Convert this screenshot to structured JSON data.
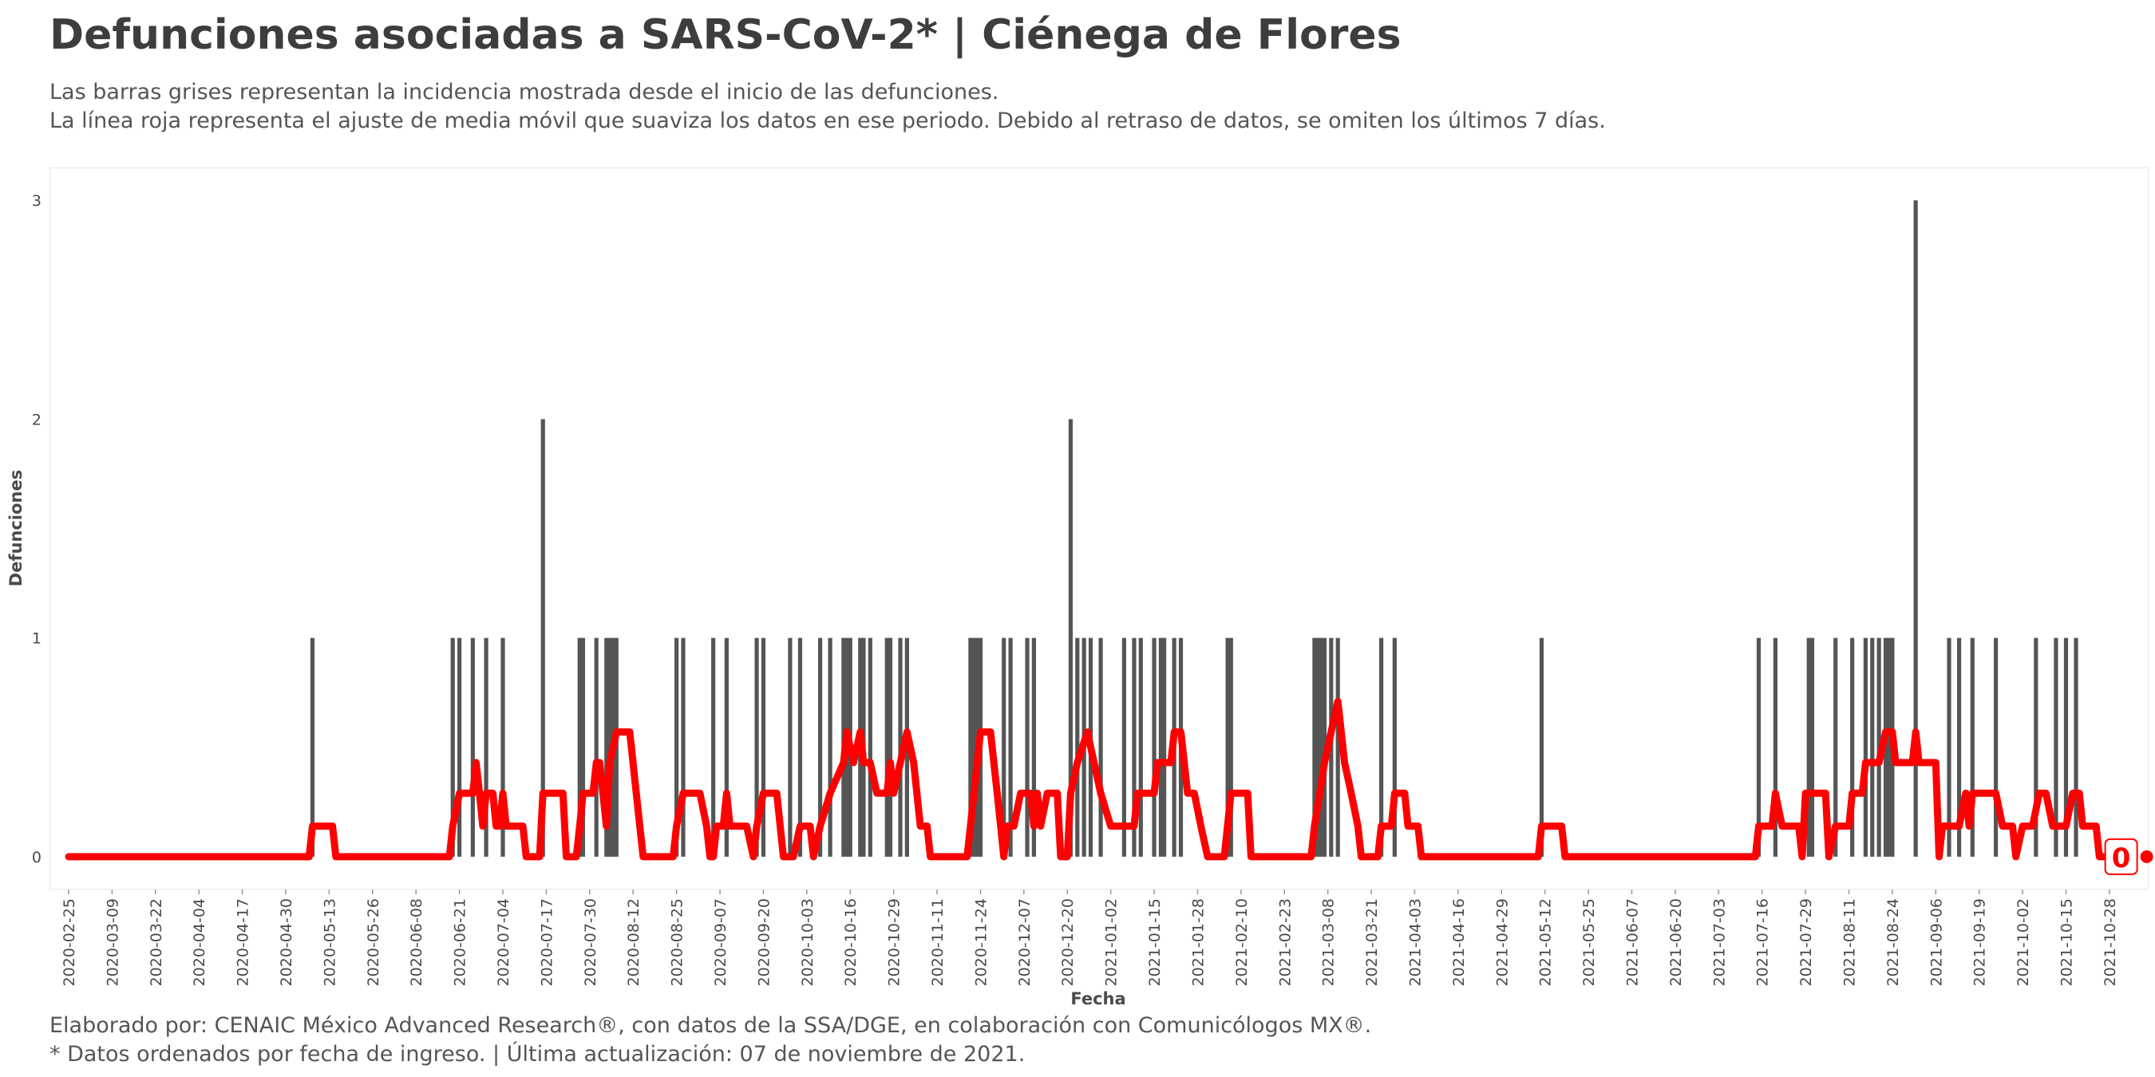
{
  "title": "Defunciones asociadas a SARS-CoV-2* | Ciénega de Flores",
  "subtitle_line1": "Las barras grises representan la incidencia mostrada desde el inicio de las defunciones.",
  "subtitle_line2": "La línea roja representa el ajuste de media móvil que suaviza los datos en ese periodo. Debido al retraso de datos, se omiten los últimos 7 días.",
  "footer_line1": "Elaborado por: CENAIC México Advanced Research®, con datos de la SSA/DGE, en colaboración con Comunicólogos MX®.",
  "footer_line2": "* Datos ordenados por fecha de ingreso. | Última actualización: 07 de noviembre de 2021.",
  "colors": {
    "bars": "#555555",
    "line": "#ff0000",
    "text": "#3d3d3d"
  },
  "chart_data": {
    "type": "bar",
    "xlabel": "Fecha",
    "ylabel": "Defunciones",
    "x_start": "2020-02-25",
    "x_end": "2021-11-03",
    "ylim": [
      -0.15,
      3.15
    ],
    "y_ticks": [
      0,
      1,
      2,
      3
    ],
    "x_ticks": [
      "2020-02-25",
      "2020-03-09",
      "2020-03-22",
      "2020-04-04",
      "2020-04-17",
      "2020-04-30",
      "2020-05-13",
      "2020-05-26",
      "2020-06-08",
      "2020-06-21",
      "2020-07-04",
      "2020-07-17",
      "2020-07-30",
      "2020-08-12",
      "2020-08-25",
      "2020-09-07",
      "2020-09-20",
      "2020-10-03",
      "2020-10-16",
      "2020-10-29",
      "2020-11-11",
      "2020-11-24",
      "2020-12-07",
      "2020-12-20",
      "2021-01-02",
      "2021-01-15",
      "2021-01-28",
      "2021-02-10",
      "2021-02-23",
      "2021-03-08",
      "2021-03-21",
      "2021-04-03",
      "2021-04-16",
      "2021-04-29",
      "2021-05-12",
      "2021-05-25",
      "2021-06-07",
      "2021-06-20",
      "2021-07-03",
      "2021-07-16",
      "2021-07-29",
      "2021-08-11",
      "2021-08-24",
      "2021-09-06",
      "2021-09-19",
      "2021-10-02",
      "2021-10-15",
      "2021-10-28"
    ],
    "grid": false,
    "series": [
      {
        "name": "",
        "kind": "bar",
        "points": [
          [
            "2020-05-08",
            1
          ],
          [
            "2020-06-19",
            1
          ],
          [
            "2020-06-21",
            1
          ],
          [
            "2020-06-25",
            1
          ],
          [
            "2020-06-29",
            1
          ],
          [
            "2020-07-04",
            1
          ],
          [
            "2020-07-16",
            2
          ],
          [
            "2020-07-27",
            1
          ],
          [
            "2020-07-28",
            1
          ],
          [
            "2020-08-01",
            1
          ],
          [
            "2020-08-04",
            1
          ],
          [
            "2020-08-05",
            1
          ],
          [
            "2020-08-06",
            1
          ],
          [
            "2020-08-07",
            1
          ],
          [
            "2020-08-25",
            1
          ],
          [
            "2020-08-27",
            1
          ],
          [
            "2020-09-05",
            1
          ],
          [
            "2020-09-09",
            1
          ],
          [
            "2020-09-18",
            1
          ],
          [
            "2020-09-20",
            1
          ],
          [
            "2020-09-28",
            1
          ],
          [
            "2020-10-01",
            1
          ],
          [
            "2020-10-07",
            1
          ],
          [
            "2020-10-10",
            1
          ],
          [
            "2020-10-14",
            1
          ],
          [
            "2020-10-15",
            1
          ],
          [
            "2020-10-16",
            1
          ],
          [
            "2020-10-19",
            1
          ],
          [
            "2020-10-20",
            1
          ],
          [
            "2020-10-22",
            1
          ],
          [
            "2020-10-27",
            1
          ],
          [
            "2020-10-28",
            1
          ],
          [
            "2020-10-31",
            1
          ],
          [
            "2020-11-02",
            1
          ],
          [
            "2020-11-21",
            1
          ],
          [
            "2020-11-22",
            1
          ],
          [
            "2020-11-23",
            1
          ],
          [
            "2020-11-24",
            1
          ],
          [
            "2020-12-01",
            1
          ],
          [
            "2020-12-03",
            1
          ],
          [
            "2020-12-08",
            1
          ],
          [
            "2020-12-10",
            1
          ],
          [
            "2020-12-21",
            2
          ],
          [
            "2020-12-23",
            1
          ],
          [
            "2020-12-25",
            1
          ],
          [
            "2020-12-27",
            1
          ],
          [
            "2020-12-30",
            1
          ],
          [
            "2021-01-06",
            1
          ],
          [
            "2021-01-09",
            1
          ],
          [
            "2021-01-11",
            1
          ],
          [
            "2021-01-15",
            1
          ],
          [
            "2021-01-17",
            1
          ],
          [
            "2021-01-18",
            1
          ],
          [
            "2021-01-21",
            1
          ],
          [
            "2021-01-23",
            1
          ],
          [
            "2021-02-06",
            1
          ],
          [
            "2021-02-07",
            1
          ],
          [
            "2021-03-04",
            1
          ],
          [
            "2021-03-05",
            1
          ],
          [
            "2021-03-06",
            1
          ],
          [
            "2021-03-07",
            1
          ],
          [
            "2021-03-09",
            1
          ],
          [
            "2021-03-11",
            1
          ],
          [
            "2021-03-24",
            1
          ],
          [
            "2021-03-28",
            1
          ],
          [
            "2021-05-11",
            1
          ],
          [
            "2021-07-15",
            1
          ],
          [
            "2021-07-20",
            1
          ],
          [
            "2021-07-30",
            1
          ],
          [
            "2021-07-31",
            1
          ],
          [
            "2021-08-07",
            1
          ],
          [
            "2021-08-12",
            1
          ],
          [
            "2021-08-16",
            1
          ],
          [
            "2021-08-18",
            1
          ],
          [
            "2021-08-20",
            1
          ],
          [
            "2021-08-22",
            1
          ],
          [
            "2021-08-23",
            1
          ],
          [
            "2021-08-24",
            1
          ],
          [
            "2021-08-31",
            3
          ],
          [
            "2021-09-10",
            1
          ],
          [
            "2021-09-13",
            1
          ],
          [
            "2021-09-17",
            1
          ],
          [
            "2021-09-24",
            1
          ],
          [
            "2021-10-06",
            1
          ],
          [
            "2021-10-12",
            1
          ],
          [
            "2021-10-15",
            1
          ],
          [
            "2021-10-18",
            1
          ]
        ]
      },
      {
        "name": "",
        "kind": "line",
        "points": [
          [
            "2020-02-25",
            0
          ],
          [
            "2020-05-07",
            0
          ],
          [
            "2020-05-08",
            0.14
          ],
          [
            "2020-05-14",
            0.14
          ],
          [
            "2020-05-15",
            0
          ],
          [
            "2020-06-18",
            0
          ],
          [
            "2020-06-19",
            0.14
          ],
          [
            "2020-06-21",
            0.29
          ],
          [
            "2020-06-25",
            0.29
          ],
          [
            "2020-06-26",
            0.43
          ],
          [
            "2020-06-27",
            0.29
          ],
          [
            "2020-06-28",
            0.14
          ],
          [
            "2020-06-29",
            0.29
          ],
          [
            "2020-07-01",
            0.29
          ],
          [
            "2020-07-02",
            0.14
          ],
          [
            "2020-07-03",
            0.14
          ],
          [
            "2020-07-04",
            0.29
          ],
          [
            "2020-07-05",
            0.14
          ],
          [
            "2020-07-10",
            0.14
          ],
          [
            "2020-07-11",
            0
          ],
          [
            "2020-07-15",
            0
          ],
          [
            "2020-07-16",
            0.29
          ],
          [
            "2020-07-22",
            0.29
          ],
          [
            "2020-07-23",
            0
          ],
          [
            "2020-07-26",
            0
          ],
          [
            "2020-07-27",
            0.14
          ],
          [
            "2020-07-28",
            0.29
          ],
          [
            "2020-07-31",
            0.29
          ],
          [
            "2020-08-01",
            0.43
          ],
          [
            "2020-08-02",
            0.43
          ],
          [
            "2020-08-04",
            0.14
          ],
          [
            "2020-08-05",
            0.43
          ],
          [
            "2020-08-07",
            0.57
          ],
          [
            "2020-08-11",
            0.57
          ],
          [
            "2020-08-14",
            0.14
          ],
          [
            "2020-08-15",
            0
          ],
          [
            "2020-08-24",
            0
          ],
          [
            "2020-08-25",
            0.14
          ],
          [
            "2020-08-27",
            0.29
          ],
          [
            "2020-09-01",
            0.29
          ],
          [
            "2020-09-03",
            0.14
          ],
          [
            "2020-09-04",
            0
          ],
          [
            "2020-09-05",
            0
          ],
          [
            "2020-09-06",
            0.14
          ],
          [
            "2020-09-08",
            0.14
          ],
          [
            "2020-09-09",
            0.29
          ],
          [
            "2020-09-10",
            0.14
          ],
          [
            "2020-09-15",
            0.14
          ],
          [
            "2020-09-17",
            0
          ],
          [
            "2020-09-18",
            0.14
          ],
          [
            "2020-09-20",
            0.29
          ],
          [
            "2020-09-24",
            0.29
          ],
          [
            "2020-09-26",
            0
          ],
          [
            "2020-09-29",
            0
          ],
          [
            "2020-10-01",
            0.14
          ],
          [
            "2020-10-04",
            0.14
          ],
          [
            "2020-10-05",
            0
          ],
          [
            "2020-10-07",
            0.14
          ],
          [
            "2020-10-10",
            0.29
          ],
          [
            "2020-10-14",
            0.43
          ],
          [
            "2020-10-15",
            0.57
          ],
          [
            "2020-10-17",
            0.43
          ],
          [
            "2020-10-19",
            0.57
          ],
          [
            "2020-10-20",
            0.43
          ],
          [
            "2020-10-22",
            0.43
          ],
          [
            "2020-10-24",
            0.29
          ],
          [
            "2020-10-27",
            0.29
          ],
          [
            "2020-10-28",
            0.43
          ],
          [
            "2020-10-29",
            0.29
          ],
          [
            "2020-10-31",
            0.43
          ],
          [
            "2020-11-02",
            0.57
          ],
          [
            "2020-11-04",
            0.43
          ],
          [
            "2020-11-06",
            0.14
          ],
          [
            "2020-11-08",
            0.14
          ],
          [
            "2020-11-09",
            0
          ],
          [
            "2020-11-20",
            0
          ],
          [
            "2020-11-21",
            0.14
          ],
          [
            "2020-11-24",
            0.57
          ],
          [
            "2020-11-27",
            0.57
          ],
          [
            "2020-11-29",
            0.29
          ],
          [
            "2020-12-01",
            0
          ],
          [
            "2020-12-02",
            0.14
          ],
          [
            "2020-12-04",
            0.14
          ],
          [
            "2020-12-06",
            0.29
          ],
          [
            "2020-12-09",
            0.29
          ],
          [
            "2020-12-10",
            0.14
          ],
          [
            "2020-12-11",
            0.29
          ],
          [
            "2020-12-12",
            0.14
          ],
          [
            "2020-12-14",
            0.29
          ],
          [
            "2020-12-17",
            0.29
          ],
          [
            "2020-12-18",
            0
          ],
          [
            "2020-12-20",
            0
          ],
          [
            "2020-12-21",
            0.29
          ],
          [
            "2020-12-23",
            0.43
          ],
          [
            "2020-12-26",
            0.57
          ],
          [
            "2020-12-28",
            0.43
          ],
          [
            "2020-12-30",
            0.29
          ],
          [
            "2021-01-02",
            0.14
          ],
          [
            "2021-01-09",
            0.14
          ],
          [
            "2021-01-10",
            0.29
          ],
          [
            "2021-01-15",
            0.29
          ],
          [
            "2021-01-16",
            0.43
          ],
          [
            "2021-01-20",
            0.43
          ],
          [
            "2021-01-21",
            0.57
          ],
          [
            "2021-01-23",
            0.57
          ],
          [
            "2021-01-25",
            0.29
          ],
          [
            "2021-01-27",
            0.29
          ],
          [
            "2021-01-29",
            0.14
          ],
          [
            "2021-01-31",
            0
          ],
          [
            "2021-02-05",
            0
          ],
          [
            "2021-02-07",
            0.29
          ],
          [
            "2021-02-12",
            0.29
          ],
          [
            "2021-02-13",
            0
          ],
          [
            "2021-03-03",
            0
          ],
          [
            "2021-03-04",
            0.14
          ],
          [
            "2021-03-07",
            0.43
          ],
          [
            "2021-03-09",
            0.57
          ],
          [
            "2021-03-11",
            0.71
          ],
          [
            "2021-03-13",
            0.43
          ],
          [
            "2021-03-15",
            0.29
          ],
          [
            "2021-03-17",
            0.14
          ],
          [
            "2021-03-18",
            0
          ],
          [
            "2021-03-23",
            0
          ],
          [
            "2021-03-24",
            0.14
          ],
          [
            "2021-03-27",
            0.14
          ],
          [
            "2021-03-28",
            0.29
          ],
          [
            "2021-03-31",
            0.29
          ],
          [
            "2021-04-01",
            0.14
          ],
          [
            "2021-04-04",
            0.14
          ],
          [
            "2021-04-05",
            0
          ],
          [
            "2021-05-10",
            0
          ],
          [
            "2021-05-11",
            0.14
          ],
          [
            "2021-05-17",
            0.14
          ],
          [
            "2021-05-18",
            0
          ],
          [
            "2021-07-14",
            0
          ],
          [
            "2021-07-15",
            0.14
          ],
          [
            "2021-07-19",
            0.14
          ],
          [
            "2021-07-20",
            0.29
          ],
          [
            "2021-07-22",
            0.14
          ],
          [
            "2021-07-27",
            0.14
          ],
          [
            "2021-07-28",
            0
          ],
          [
            "2021-07-29",
            0.29
          ],
          [
            "2021-08-04",
            0.29
          ],
          [
            "2021-08-05",
            0
          ],
          [
            "2021-08-07",
            0.14
          ],
          [
            "2021-08-11",
            0.14
          ],
          [
            "2021-08-12",
            0.29
          ],
          [
            "2021-08-15",
            0.29
          ],
          [
            "2021-08-16",
            0.43
          ],
          [
            "2021-08-20",
            0.43
          ],
          [
            "2021-08-22",
            0.57
          ],
          [
            "2021-08-24",
            0.57
          ],
          [
            "2021-08-25",
            0.43
          ],
          [
            "2021-08-30",
            0.43
          ],
          [
            "2021-08-31",
            0.57
          ],
          [
            "2021-09-01",
            0.43
          ],
          [
            "2021-09-06",
            0.43
          ],
          [
            "2021-09-07",
            0
          ],
          [
            "2021-09-08",
            0.14
          ],
          [
            "2021-09-13",
            0.14
          ],
          [
            "2021-09-15",
            0.29
          ],
          [
            "2021-09-16",
            0.14
          ],
          [
            "2021-09-17",
            0.29
          ],
          [
            "2021-09-24",
            0.29
          ],
          [
            "2021-09-26",
            0.14
          ],
          [
            "2021-09-29",
            0.14
          ],
          [
            "2021-09-30",
            0
          ],
          [
            "2021-10-02",
            0.14
          ],
          [
            "2021-10-05",
            0.14
          ],
          [
            "2021-10-07",
            0.29
          ],
          [
            "2021-10-09",
            0.29
          ],
          [
            "2021-10-11",
            0.14
          ],
          [
            "2021-10-15",
            0.14
          ],
          [
            "2021-10-17",
            0.29
          ],
          [
            "2021-10-19",
            0.29
          ],
          [
            "2021-10-20",
            0.14
          ],
          [
            "2021-10-24",
            0.14
          ],
          [
            "2021-10-25",
            0
          ],
          [
            "2021-11-01",
            0
          ]
        ]
      }
    ],
    "end_label": "0",
    "end_value": 0,
    "end_date": "2021-11-01"
  }
}
